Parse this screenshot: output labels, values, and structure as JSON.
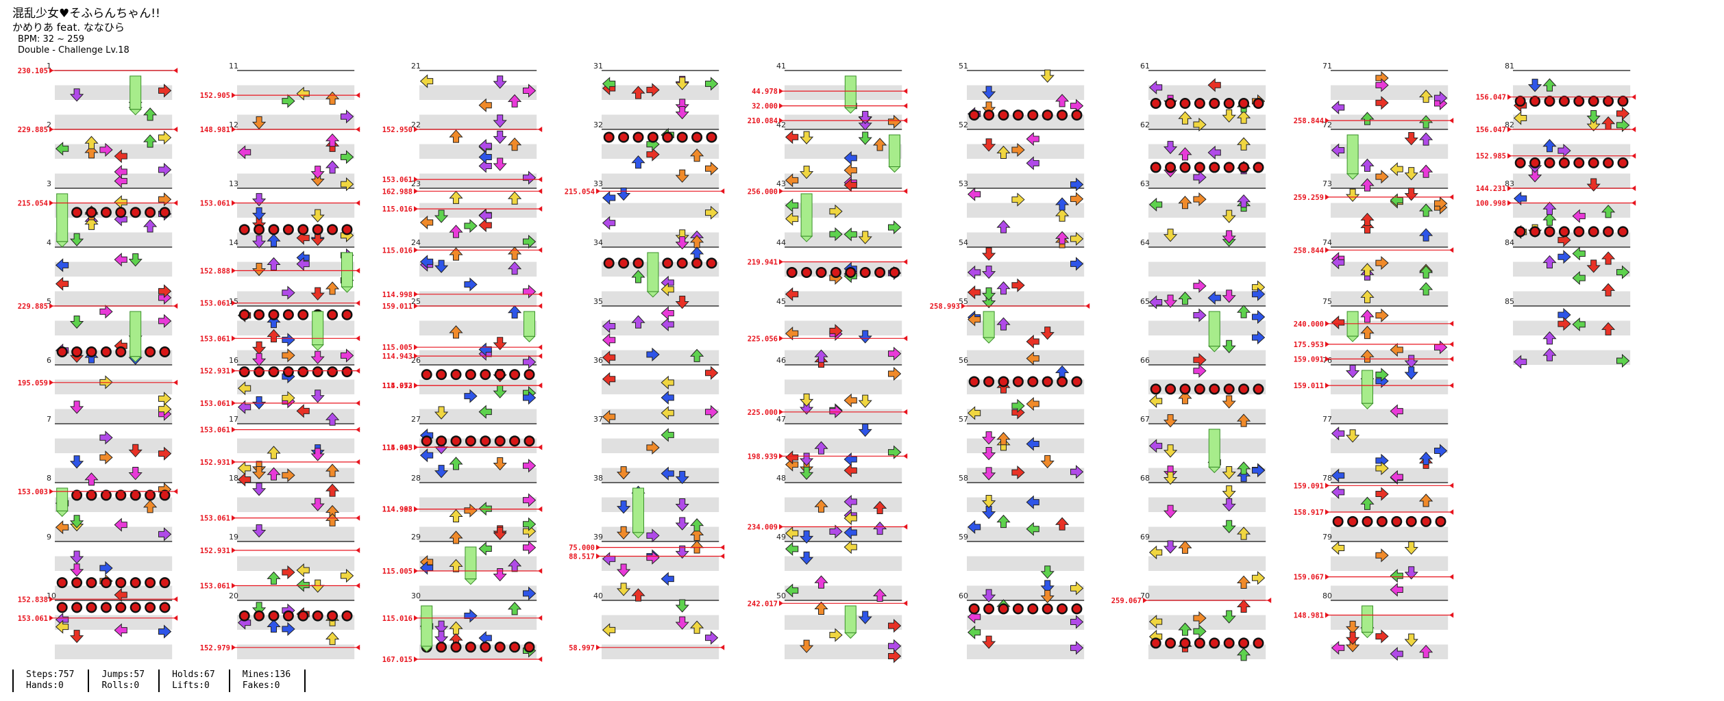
{
  "header": {
    "title": "混乱少女♥そふらんちゃん!!",
    "artist": "かめりあ feat. ななひら",
    "bpm": "BPM: 32 ~ 259",
    "chart_type": "Double - Challenge Lv.18"
  },
  "stats": [
    {
      "top": "Steps:757",
      "bottom": "Hands:0"
    },
    {
      "top": "Jumps:57",
      "bottom": "Rolls:0"
    },
    {
      "top": "Holds:67",
      "bottom": "Lifts:0"
    },
    {
      "top": "Mines:136",
      "bottom": "Fakes:0"
    }
  ],
  "colors": {
    "bpm_line": "#e8141e",
    "shade": "#e0e0e0",
    "measure_line": "#111111",
    "arrow_blue": "#2e55e8",
    "arrow_red": "#e83226",
    "arrow_yellow": "#f0d640",
    "arrow_green": "#5ed24e",
    "arrow_purple": "#b04ae8",
    "arrow_orange": "#f08a2a",
    "arrow_magenta": "#e83ad8",
    "hold_body": "#a7ec8b",
    "mine": "#d81818"
  },
  "columns": [
    {
      "measures": [
        1,
        2,
        3,
        4,
        5,
        6,
        7,
        8,
        9,
        10
      ],
      "bpm_changes": [
        {
          "label": "230.105",
          "measure": 1.0
        },
        {
          "label": "229.885",
          "measure": 2.0
        },
        {
          "label": "215.054",
          "measure": 3.25
        },
        {
          "label": "229.885",
          "measure": 5.0
        },
        {
          "label": "195.059",
          "measure": 6.3
        },
        {
          "label": "153.003",
          "measure": 8.15
        },
        {
          "label": "152.838",
          "measure": 9.98
        },
        {
          "label": "153.061",
          "measure": 10.3
        }
      ]
    },
    {
      "measures": [
        11,
        12,
        13,
        14,
        15,
        16,
        17,
        18,
        19,
        20
      ],
      "bpm_changes": [
        {
          "label": "152.905",
          "measure": 11.42
        },
        {
          "label": "148.981",
          "measure": 12.0
        },
        {
          "label": "153.061",
          "measure": 13.25
        },
        {
          "label": "152.888",
          "measure": 14.4
        },
        {
          "label": "153.061",
          "measure": 14.95
        },
        {
          "label": "153.061",
          "measure": 15.55
        },
        {
          "label": "152.931",
          "measure": 16.1
        },
        {
          "label": "153.061",
          "measure": 16.65
        },
        {
          "label": "153.061",
          "measure": 17.1
        },
        {
          "label": "152.931",
          "measure": 17.65
        },
        {
          "label": "153.061",
          "measure": 18.6
        },
        {
          "label": "152.931",
          "measure": 19.15
        },
        {
          "label": "153.061",
          "measure": 19.75
        },
        {
          "label": "152.979",
          "measure": 20.8
        }
      ]
    },
    {
      "measures": [
        21,
        22,
        23,
        24,
        25,
        26,
        27,
        28,
        29,
        30
      ],
      "bpm_changes": [
        {
          "label": "152.950",
          "measure": 22.0
        },
        {
          "label": "153.061",
          "measure": 22.85
        },
        {
          "label": "162.988",
          "measure": 23.05
        },
        {
          "label": "115.016",
          "measure": 23.35
        },
        {
          "label": "115.016",
          "measure": 24.05
        },
        {
          "label": "114.998",
          "measure": 24.8
        },
        {
          "label": "159.011",
          "measure": 25.0
        },
        {
          "label": "114.943",
          "measure": 25.85
        },
        {
          "label": "115.005",
          "measure": 25.7
        },
        {
          "label": "115.053",
          "measure": 26.35
        },
        {
          "label": "114.972",
          "measure": 26.35
        },
        {
          "label": "114.943",
          "measure": 27.4
        },
        {
          "label": "115.005",
          "measure": 27.4
        },
        {
          "label": "114.998",
          "measure": 28.45
        },
        {
          "label": "114.983",
          "measure": 28.45
        },
        {
          "label": "115.005",
          "measure": 29.5
        },
        {
          "label": "115.016",
          "measure": 30.3
        },
        {
          "label": "167.015",
          "measure": 31.0
        }
      ]
    },
    {
      "measures": [
        31,
        32,
        33,
        34,
        35,
        36,
        37,
        38,
        39,
        40
      ],
      "bpm_changes": [
        {
          "label": "215.054",
          "measure": 33.05
        },
        {
          "label": "75.000",
          "measure": 39.1
        },
        {
          "label": "88.517",
          "measure": 39.25
        },
        {
          "label": "58.997",
          "measure": 40.8
        }
      ]
    },
    {
      "measures": [
        41,
        42,
        43,
        44,
        45,
        46,
        47,
        48,
        49,
        50
      ],
      "bpm_changes": [
        {
          "label": "44.978",
          "measure": 41.35
        },
        {
          "label": "32.000",
          "measure": 41.6
        },
        {
          "label": "210.084",
          "measure": 41.85
        },
        {
          "label": "256.000",
          "measure": 43.05
        },
        {
          "label": "219.941",
          "measure": 44.25
        },
        {
          "label": "225.056",
          "measure": 45.55
        },
        {
          "label": "225.000",
          "measure": 46.8
        },
        {
          "label": "198.939",
          "measure": 47.55
        },
        {
          "label": "234.009",
          "measure": 48.75
        },
        {
          "label": "242.017",
          "measure": 50.05
        }
      ]
    },
    {
      "measures": [
        51,
        52,
        53,
        54,
        55,
        56,
        57,
        58,
        59,
        60
      ],
      "bpm_changes": [
        {
          "label": "258.993",
          "measure": 55.0
        }
      ]
    },
    {
      "measures": [
        61,
        62,
        63,
        64,
        65,
        66,
        67,
        68,
        69,
        70
      ],
      "bpm_changes": [
        {
          "label": "259.067",
          "measure": 70.0
        }
      ]
    },
    {
      "measures": [
        71,
        72,
        73,
        74,
        75,
        76,
        77,
        78,
        79,
        80
      ],
      "bpm_changes": [
        {
          "label": "258.844",
          "measure": 71.85
        },
        {
          "label": "259.259",
          "measure": 73.15
        },
        {
          "label": "258.844",
          "measure": 74.05
        },
        {
          "label": "240.000",
          "measure": 75.3
        },
        {
          "label": "175.953",
          "measure": 75.65
        },
        {
          "label": "159.091",
          "measure": 75.9
        },
        {
          "label": "159.011",
          "measure": 76.35
        },
        {
          "label": "159.091",
          "measure": 78.05
        },
        {
          "label": "158.917",
          "measure": 78.5
        },
        {
          "label": "159.067",
          "measure": 79.6
        },
        {
          "label": "148.981",
          "measure": 80.25
        }
      ]
    },
    {
      "measures": [
        81,
        82,
        83,
        84,
        85
      ],
      "bpm_changes": [
        {
          "label": "156.047",
          "measure": 81.45
        },
        {
          "label": "156.047",
          "measure": 82.0
        },
        {
          "label": "152.985",
          "measure": 82.45
        },
        {
          "label": "144.231",
          "measure": 83.0
        },
        {
          "label": "100.998",
          "measure": 83.25
        }
      ]
    }
  ]
}
